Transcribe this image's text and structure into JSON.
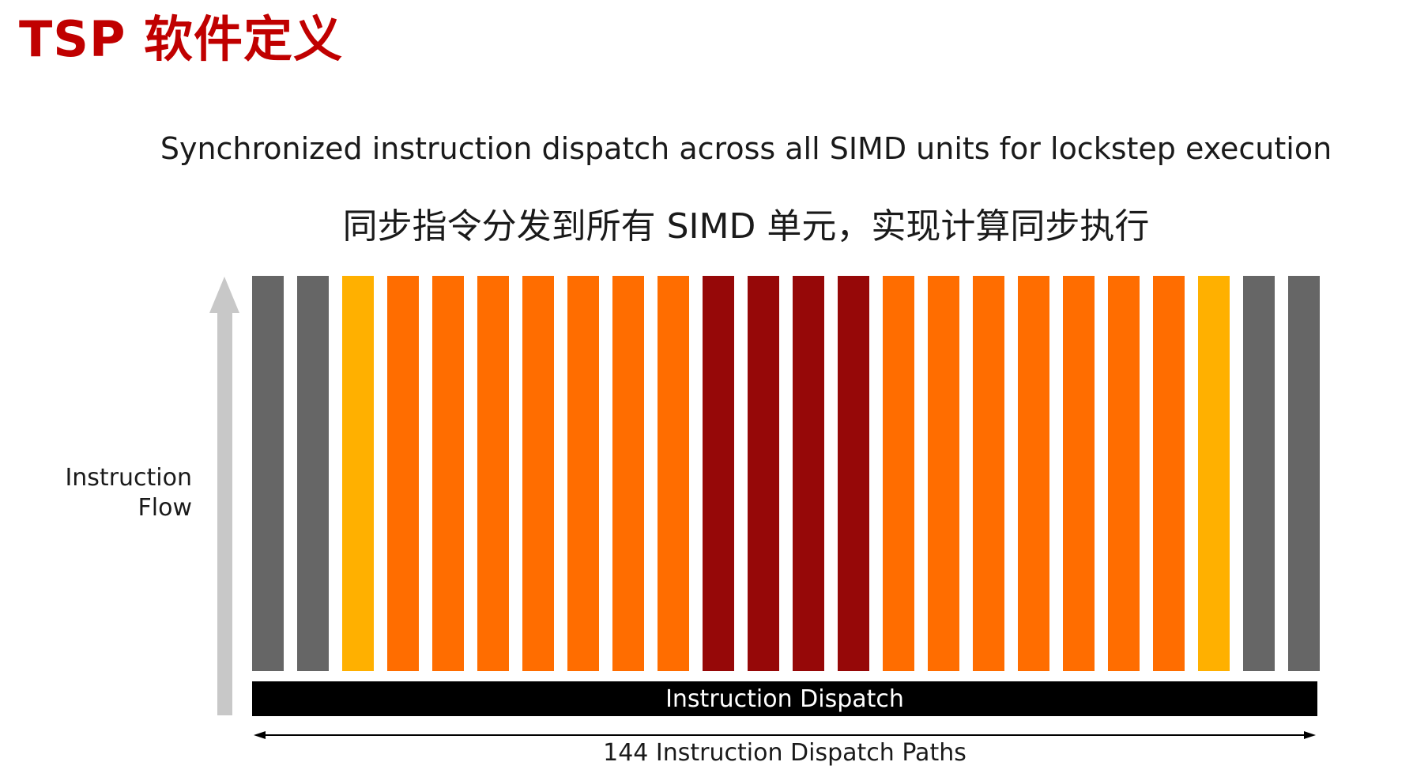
{
  "title": "TSP 软件定义",
  "subtitle_en": "Synchronized instruction dispatch across all SIMD units for lockstep execution",
  "subtitle_zh": "同步指令分发到所有 SIMD 单元，实现计算同步执行",
  "axis_label": {
    "line1": "Instruction",
    "line2": "Flow"
  },
  "dispatch_label": "Instruction Dispatch",
  "paths_label": "144 Instruction Dispatch Paths",
  "colors": {
    "title": "#c00000",
    "gray": "#666666",
    "yellow": "#ffb000",
    "orange": "#ff6d00",
    "dark_red": "#960808",
    "arrow": "#c8c8c8",
    "dispatch_bar": "#000000"
  },
  "units": [
    "gray",
    "gray",
    "yellow",
    "orange",
    "orange",
    "orange",
    "orange",
    "orange",
    "orange",
    "orange",
    "dark_red",
    "dark_red",
    "dark_red",
    "dark_red",
    "orange",
    "orange",
    "orange",
    "orange",
    "orange",
    "orange",
    "orange",
    "yellow",
    "gray",
    "gray"
  ]
}
